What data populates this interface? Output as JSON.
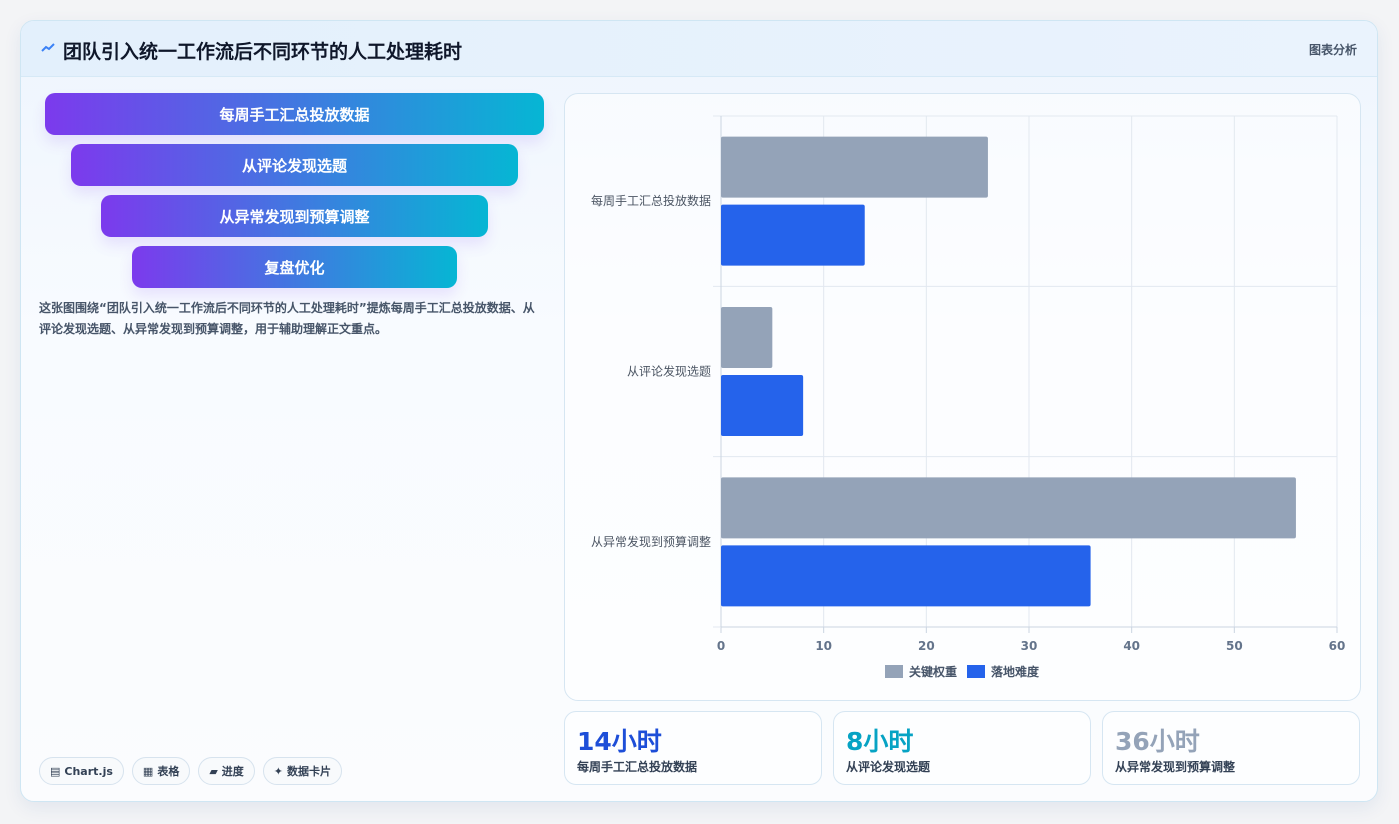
{
  "header": {
    "title": "团队引入统一工作流后不同环节的人工处理耗时",
    "tag": "图表分析"
  },
  "funnel": [
    "每周手工汇总投放数据",
    "从评论发现选题",
    "从异常发现到预算调整",
    "复盘优化"
  ],
  "description": "这张图围绕“团队引入统一工作流后不同环节的人工处理耗时”提炼每周手工汇总投放数据、从评论发现选题、从异常发现到预算调整，用于辅助理解正文重点。",
  "chips": [
    {
      "icon": "chart-icon",
      "label": "Chart.js"
    },
    {
      "icon": "table-icon",
      "label": "表格"
    },
    {
      "icon": "progress-icon",
      "label": "进度"
    },
    {
      "icon": "sparkle-icon",
      "label": "数据卡片"
    }
  ],
  "stats": [
    {
      "value": "14小时",
      "label": "每周手工汇总投放数据",
      "color": "#1d4ed8"
    },
    {
      "value": "8小时",
      "label": "从评论发现选题",
      "color": "#06a3c4"
    },
    {
      "value": "36小时",
      "label": "从异常发现到预算调整",
      "color": "#94a3b8"
    }
  ],
  "chart_data": {
    "type": "bar",
    "orientation": "horizontal",
    "categories": [
      "每周手工汇总投放数据",
      "从评论发现选题",
      "从异常发现到预算调整"
    ],
    "series": [
      {
        "name": "关键权重",
        "values": [
          26,
          5,
          56
        ],
        "color": "#94a3b8"
      },
      {
        "name": "落地难度",
        "values": [
          14,
          8,
          36
        ],
        "color": "#2563eb"
      }
    ],
    "xlim": [
      0,
      60
    ],
    "xticks": [
      0,
      10,
      20,
      30,
      40,
      50,
      60
    ],
    "grid": true,
    "legend_position": "bottom"
  }
}
